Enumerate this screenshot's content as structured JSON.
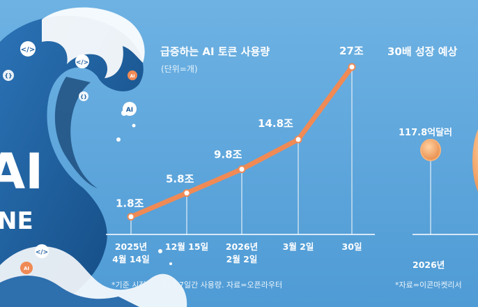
{
  "chart_data": [
    {
      "type": "line",
      "title": "급증하는 AI 토큰 사용량",
      "subtitle": "(단위=개)",
      "categories": [
        "2025년 4월 14일",
        "12월 15일",
        "2026년 2월 2일",
        "3월 2일",
        "30일"
      ],
      "tick_lines": [
        [
          "2025년",
          "4월 14일"
        ],
        [
          "12월 15일"
        ],
        [
          "2026년",
          "2월 2일"
        ],
        [
          "3월 2일"
        ],
        [
          "30일"
        ]
      ],
      "values": [
        1.8,
        5.8,
        9.8,
        14.8,
        27
      ],
      "value_labels": [
        "1.8조",
        "5.8조",
        "9.8조",
        "14.8조",
        "27조"
      ],
      "footnote": "*기준 시점까지 최근 7일간 사용량. 자료=오픈라우터",
      "color": "#f08a55"
    },
    {
      "type": "bar",
      "title": "30배 성장 예상",
      "categories": [
        "2026년"
      ],
      "values": [
        117.8
      ],
      "value_labels": [
        "117.8억달러"
      ],
      "footnote": "*자료=이콘마켓리서",
      "color": "#f3a46b"
    }
  ],
  "illustration": {
    "title_letters": [
      "AI",
      "NE"
    ],
    "wave_color": "#1f5fa0",
    "foam_color": "#ffffff"
  }
}
